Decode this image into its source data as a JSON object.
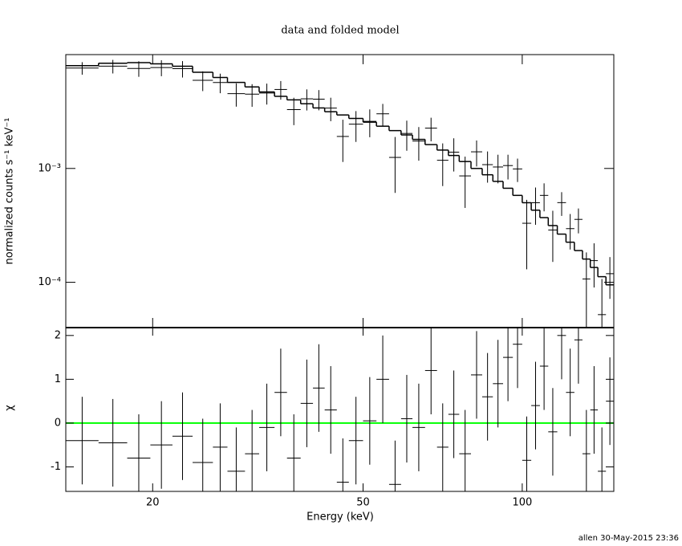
{
  "chart_data": [
    {
      "type": "spectrum",
      "title": "data and folded model",
      "ylabel": "normalized counts s⁻¹ keV⁻¹",
      "xlog": true,
      "ylog": true,
      "xlim": [
        13.7,
        149
      ],
      "ylim": [
        4e-05,
        0.01
      ],
      "yticks": [
        {
          "value": 0.001,
          "label": "10⁻³"
        },
        {
          "value": 0.0001,
          "label": "10⁻⁴"
        }
      ],
      "bin_edges": [
        13.7,
        15.8,
        17.9,
        19.8,
        21.8,
        23.8,
        26.0,
        27.7,
        29.9,
        31.8,
        34.0,
        35.9,
        38.1,
        40.2,
        42.3,
        44.6,
        47.0,
        50,
        53,
        56,
        59,
        62,
        65.5,
        69,
        72.5,
        76,
        80,
        84,
        88,
        92,
        96,
        100,
        104,
        108,
        112,
        116.5,
        121,
        125.5,
        130,
        134.5,
        139,
        144,
        149
      ],
      "data": {
        "color": "#000000",
        "values": [
          0.00762,
          0.00791,
          0.00756,
          0.00769,
          0.00753,
          0.00595,
          0.00569,
          0.00454,
          0.00449,
          0.0046,
          0.00494,
          0.00329,
          0.00409,
          0.00406,
          0.00339,
          0.00191,
          0.00245,
          0.00259,
          0.00302,
          0.00125,
          0.00203,
          0.00174,
          0.00226,
          0.00118,
          0.00139,
          0.00086,
          0.0014,
          0.00108,
          0.00103,
          0.00106,
          0.00099,
          0.00033,
          0.0005,
          0.00058,
          0.000288,
          0.000501,
          0.000296,
          0.000357,
          0.000107,
          0.000155,
          5.2e-05,
          0.000119
        ],
        "errors": [
          0.00096,
          0.00108,
          0.00118,
          0.00123,
          0.00124,
          0.00117,
          0.00111,
          0.00105,
          0.00101,
          0.00096,
          0.00092,
          0.00089,
          0.00086,
          0.00082,
          0.00079,
          0.00077,
          0.00074,
          0.00071,
          0.00067,
          0.00064,
          0.0006,
          0.00057,
          0.00053,
          0.00048,
          0.00045,
          0.00041,
          0.00036,
          0.00033,
          0.00029,
          0.00026,
          0.00023,
          0.0002,
          0.00018,
          0.00016,
          0.000137,
          0.000118,
          0.000102,
          8.8e-05,
          7.6e-05,
          6.5e-05,
          5.5e-05,
          4.75e-05
        ]
      },
      "model": {
        "color": "#000000",
        "values": [
          0.008,
          0.0084,
          0.0085,
          0.0083,
          0.0079,
          0.007,
          0.0063,
          0.0057,
          0.0052,
          0.0047,
          0.0043,
          0.004,
          0.0037,
          0.0034,
          0.00315,
          0.00295,
          0.00275,
          0.00255,
          0.00235,
          0.00215,
          0.00197,
          0.0018,
          0.00162,
          0.00145,
          0.0013,
          0.00115,
          0.001,
          0.00088,
          0.00077,
          0.00067,
          0.00058,
          0.0005,
          0.00043,
          0.00037,
          0.000315,
          0.000265,
          0.000225,
          0.00019,
          0.00016,
          0.000135,
          0.000112,
          9.5e-05
        ]
      }
    },
    {
      "type": "residual",
      "ylabel": "χ",
      "xlabel": "Energy (keV)",
      "xticks": [
        20,
        50,
        100
      ],
      "ylim": [
        -1.56,
        2.18
      ],
      "yticks": [
        -1,
        0,
        1,
        2
      ],
      "error": 1,
      "color": "#000000",
      "reference_line": {
        "value": 0,
        "color": "#00ff00"
      },
      "values": [
        -0.4,
        -0.45,
        -0.8,
        -0.5,
        -0.3,
        -0.9,
        -0.55,
        -1.1,
        -0.7,
        -0.1,
        0.7,
        -0.8,
        0.45,
        0.8,
        0.3,
        -1.35,
        -0.4,
        0.05,
        1.0,
        -1.4,
        0.1,
        -0.1,
        1.2,
        -0.55,
        0.2,
        -0.7,
        1.1,
        0.6,
        0.9,
        1.5,
        1.8,
        -0.85,
        0.4,
        1.3,
        -0.2,
        2.0,
        0.7,
        1.9,
        -0.7,
        0.3,
        -1.1,
        0.5
      ]
    }
  ],
  "footer": "allen 30-May-2015 23:36"
}
